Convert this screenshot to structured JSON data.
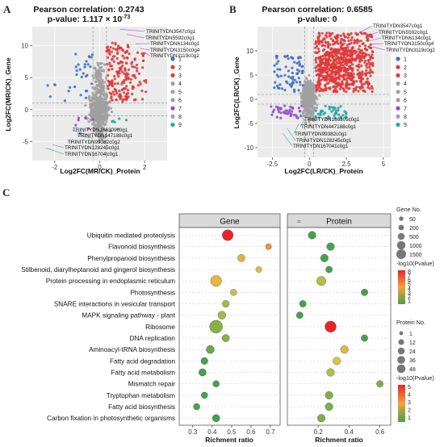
{
  "figure": {
    "panel_a": {
      "label": "A",
      "title_line1": "Pearson correlation: 0.2743",
      "title_line2": "p-value: 1.117 × 10",
      "title_exp": "-73",
      "xlabel": "Log2FC(MR/CK)_Protein",
      "ylabel": "Log2FC(MR/CK)_Gene",
      "xticks": [
        "-2",
        "0",
        "2"
      ],
      "yticks": [
        "10",
        "5",
        "0",
        "-5"
      ],
      "top_genes": [
        "TRINITYDN3547c0g1",
        "TRINITYDN5592c0g1",
        "TRINITYDN6134c0g1",
        "TRINITYDN3150c0g4",
        "TRINITYDN3119c0g2"
      ],
      "bottom_genes": [
        "TRINITYDN166309c0g1",
        "TRINITYDN147188c0g1",
        "TRINITYDN99382c0g2",
        "TRINITYDN128245c0g1",
        "TRINITYDN16704lc0g1"
      ]
    },
    "panel_b": {
      "label": "B",
      "title_line1": "Pearson correlation: 0.6585",
      "title_line2": "p-value: 0",
      "xlabel": "Log2FC(LR/CK)_Protein",
      "ylabel": "Log2FC(LR/CK)_Gene",
      "xticks": [
        "-2.5",
        "0",
        "2.5",
        "5"
      ],
      "yticks": [
        "10",
        "5",
        "0",
        "-5",
        "-10"
      ],
      "top_genes": [
        "TRINITYDN3547c0g1",
        "TRINITYDN5592c0g1",
        "TRINITYDN6134c0g1",
        "TRINITYDN3150c0g4",
        "TRINITYDN3119c0g2"
      ],
      "bottom_genes": [
        "TRINITYDN166309c0g1",
        "TRINITYDN447188c0g1",
        "TRINITYDN99382c0g1",
        "TRINITYDN128245c0g1",
        "TRINITYDN167041c0g1"
      ]
    },
    "cluster_legend": {
      "items": [
        "1",
        "2",
        "3",
        "4",
        "5",
        "6",
        "7",
        "8",
        "9"
      ],
      "colors": [
        "#3d6fc4",
        "#e03a3a",
        "#e03a3a",
        "#a0a0a0",
        "#a0a0a0",
        "#a0a0a0",
        "#8e4cc4",
        "#a0a0a0",
        "#26a6a0"
      ]
    },
    "panel_c": {
      "label": "C",
      "strip_gene": "Gene",
      "strip_protein": "Protein",
      "xlabel": "Richment ratio",
      "gene_xticks": [
        "0.3",
        "0.4",
        "0.5",
        "0.6",
        "0.7"
      ],
      "protein_xticks": [
        "0.2",
        "0.4",
        "0.6"
      ],
      "pathways": [
        "Ubiquitin mediated proteolysis",
        "Flavonoid biosynthesis",
        "Phenylpropanoid biosynthesis",
        "Stilbenoid, diarylheptanoid and gingerol biosynthesis",
        "Protein processing in endoplasmic reticulum",
        "Photosynthesis",
        "SNARE interactions in vesicular transport",
        "MAPK signaling pathway - plant",
        "Ribosome",
        "DNA replication",
        "Aminoacyl-tRNA biosynthesis",
        "Fatty acid degradation",
        "Fatty acid metabolism",
        "Mismatch repair",
        "Tryptophan metabolism",
        "Fatty acid biosynthesis",
        "Carbon fixation in photosynthetic organisms"
      ],
      "gene_legend_title": "Gene No.",
      "gene_sizes": [
        "50",
        "200",
        "500",
        "1000",
        "1500"
      ],
      "gene_pvalue_title": "-log10(Pvalue)",
      "gene_pvalue_ticks": [
        "8",
        "7",
        "6",
        "5",
        "4",
        "3",
        "2",
        "1"
      ],
      "protein_legend_title": "Protein No.",
      "protein_sizes": [
        "1",
        "12",
        "24",
        "36",
        "48"
      ],
      "protein_pvalue_title": "-log10(Pvalue)",
      "protein_pvalue_ticks": [
        "5",
        "4",
        "3",
        "2",
        "1"
      ]
    }
  },
  "chart_data": [
    {
      "type": "scatter",
      "panel": "A",
      "title": "Pearson correlation: 0.2743",
      "xlabel": "Log2FC(MR/CK)_Protein",
      "ylabel": "Log2FC(MR/CK)_Gene",
      "xlim": [
        -3,
        3
      ],
      "ylim": [
        -8,
        13
      ]
    },
    {
      "type": "scatter",
      "panel": "B",
      "title": "Pearson correlation: 0.6585",
      "xlabel": "Log2FC(LR/CK)_Protein",
      "ylabel": "Log2FC(LR/CK)_Gene",
      "xlim": [
        -3.5,
        5.5
      ],
      "ylim": [
        -12,
        15
      ]
    },
    {
      "type": "scatter",
      "panel": "C-Gene",
      "xlabel": "Richment ratio",
      "xlim": [
        0.23,
        0.75
      ],
      "points": [
        {
          "y": "Ubiquitin mediated proteolysis",
          "x": 0.48,
          "size": 900,
          "p": 8
        },
        {
          "y": "Flavonoid biosynthesis",
          "x": 0.69,
          "size": 60,
          "p": 6
        },
        {
          "y": "Phenylpropanoid biosynthesis",
          "x": 0.55,
          "size": 200,
          "p": 5
        },
        {
          "y": "Stilbenoid, diarylheptanoid and gingerol biosynthesis",
          "x": 0.64,
          "size": 60,
          "p": 4
        },
        {
          "y": "Protein processing in endoplasmic reticulum",
          "x": 0.42,
          "size": 900,
          "p": 4.5
        },
        {
          "y": "Photosynthesis",
          "x": 0.51,
          "size": 100,
          "p": 3
        },
        {
          "y": "SNARE interactions in vesicular transport",
          "x": 0.47,
          "size": 150,
          "p": 2.5
        },
        {
          "y": "MAPK signaling pathway - plant",
          "x": 0.45,
          "size": 300,
          "p": 2.5
        },
        {
          "y": "Ribosome",
          "x": 0.42,
          "size": 1500,
          "p": 2
        },
        {
          "y": "DNA replication",
          "x": 0.47,
          "size": 200,
          "p": 2
        },
        {
          "y": "Aminoacyl-tRNA biosynthesis",
          "x": 0.39,
          "size": 300,
          "p": 1.5
        },
        {
          "y": "Fatty acid degradation",
          "x": 0.36,
          "size": 150,
          "p": 1
        },
        {
          "y": "Fatty acid metabolism",
          "x": 0.35,
          "size": 200,
          "p": 1
        },
        {
          "y": "Mismatch repair",
          "x": 0.42,
          "size": 100,
          "p": 1
        },
        {
          "y": "Tryptophan metabolism",
          "x": 0.36,
          "size": 100,
          "p": 1
        },
        {
          "y": "Fatty acid biosynthesis",
          "x": 0.32,
          "size": 100,
          "p": 1
        },
        {
          "y": "Carbon fixation in photosynthetic organisms",
          "x": 0.42,
          "size": 200,
          "p": 1
        }
      ]
    },
    {
      "type": "scatter",
      "panel": "C-Protein",
      "xlabel": "Richment ratio",
      "xlim": [
        0.0,
        0.67
      ],
      "points": [
        {
          "y": "Ubiquitin mediated proteolysis",
          "x": 0.16,
          "size": 12,
          "p": 1
        },
        {
          "y": "Flavonoid biosynthesis",
          "x": 0.28,
          "size": 12,
          "p": 1
        },
        {
          "y": "Phenylpropanoid biosynthesis",
          "x": 0.24,
          "size": 12,
          "p": 1
        },
        {
          "y": "Stilbenoid, diarylheptanoid and gingerol biosynthesis",
          "x": 0.27,
          "size": 6,
          "p": 1
        },
        {
          "y": "Protein processing in endoplasmic reticulum",
          "x": 0.22,
          "size": 24,
          "p": 2
        },
        {
          "y": "Photosynthesis",
          "x": 0.5,
          "size": 6,
          "p": 1
        },
        {
          "y": "SNARE interactions in vesicular transport",
          "x": 0.1,
          "size": 6,
          "p": 1
        },
        {
          "y": "MAPK signaling pathway - plant",
          "x": 0.08,
          "size": 6,
          "p": 1
        },
        {
          "y": "Ribosome",
          "x": 0.28,
          "size": 48,
          "p": 5
        },
        {
          "y": "DNA replication",
          "x": 0.5,
          "size": 6,
          "p": 1
        },
        {
          "y": "Aminoacyl-tRNA biosynthesis",
          "x": 0.37,
          "size": 12,
          "p": 3
        },
        {
          "y": "Fatty acid degradation",
          "x": 0.32,
          "size": 12,
          "p": 2.5
        },
        {
          "y": "Fatty acid metabolism",
          "x": 0.28,
          "size": 12,
          "p": 2
        },
        {
          "y": "Mismatch repair",
          "x": 0.6,
          "size": 6,
          "p": 1.5
        },
        {
          "y": "Tryptophan metabolism",
          "x": 0.27,
          "size": 12,
          "p": 1.5
        },
        {
          "y": "Fatty acid biosynthesis",
          "x": 0.27,
          "size": 12,
          "p": 1.5
        },
        {
          "y": "Carbon fixation in photosynthetic organisms",
          "x": 0.22,
          "size": 12,
          "p": 1.5
        }
      ]
    }
  ]
}
